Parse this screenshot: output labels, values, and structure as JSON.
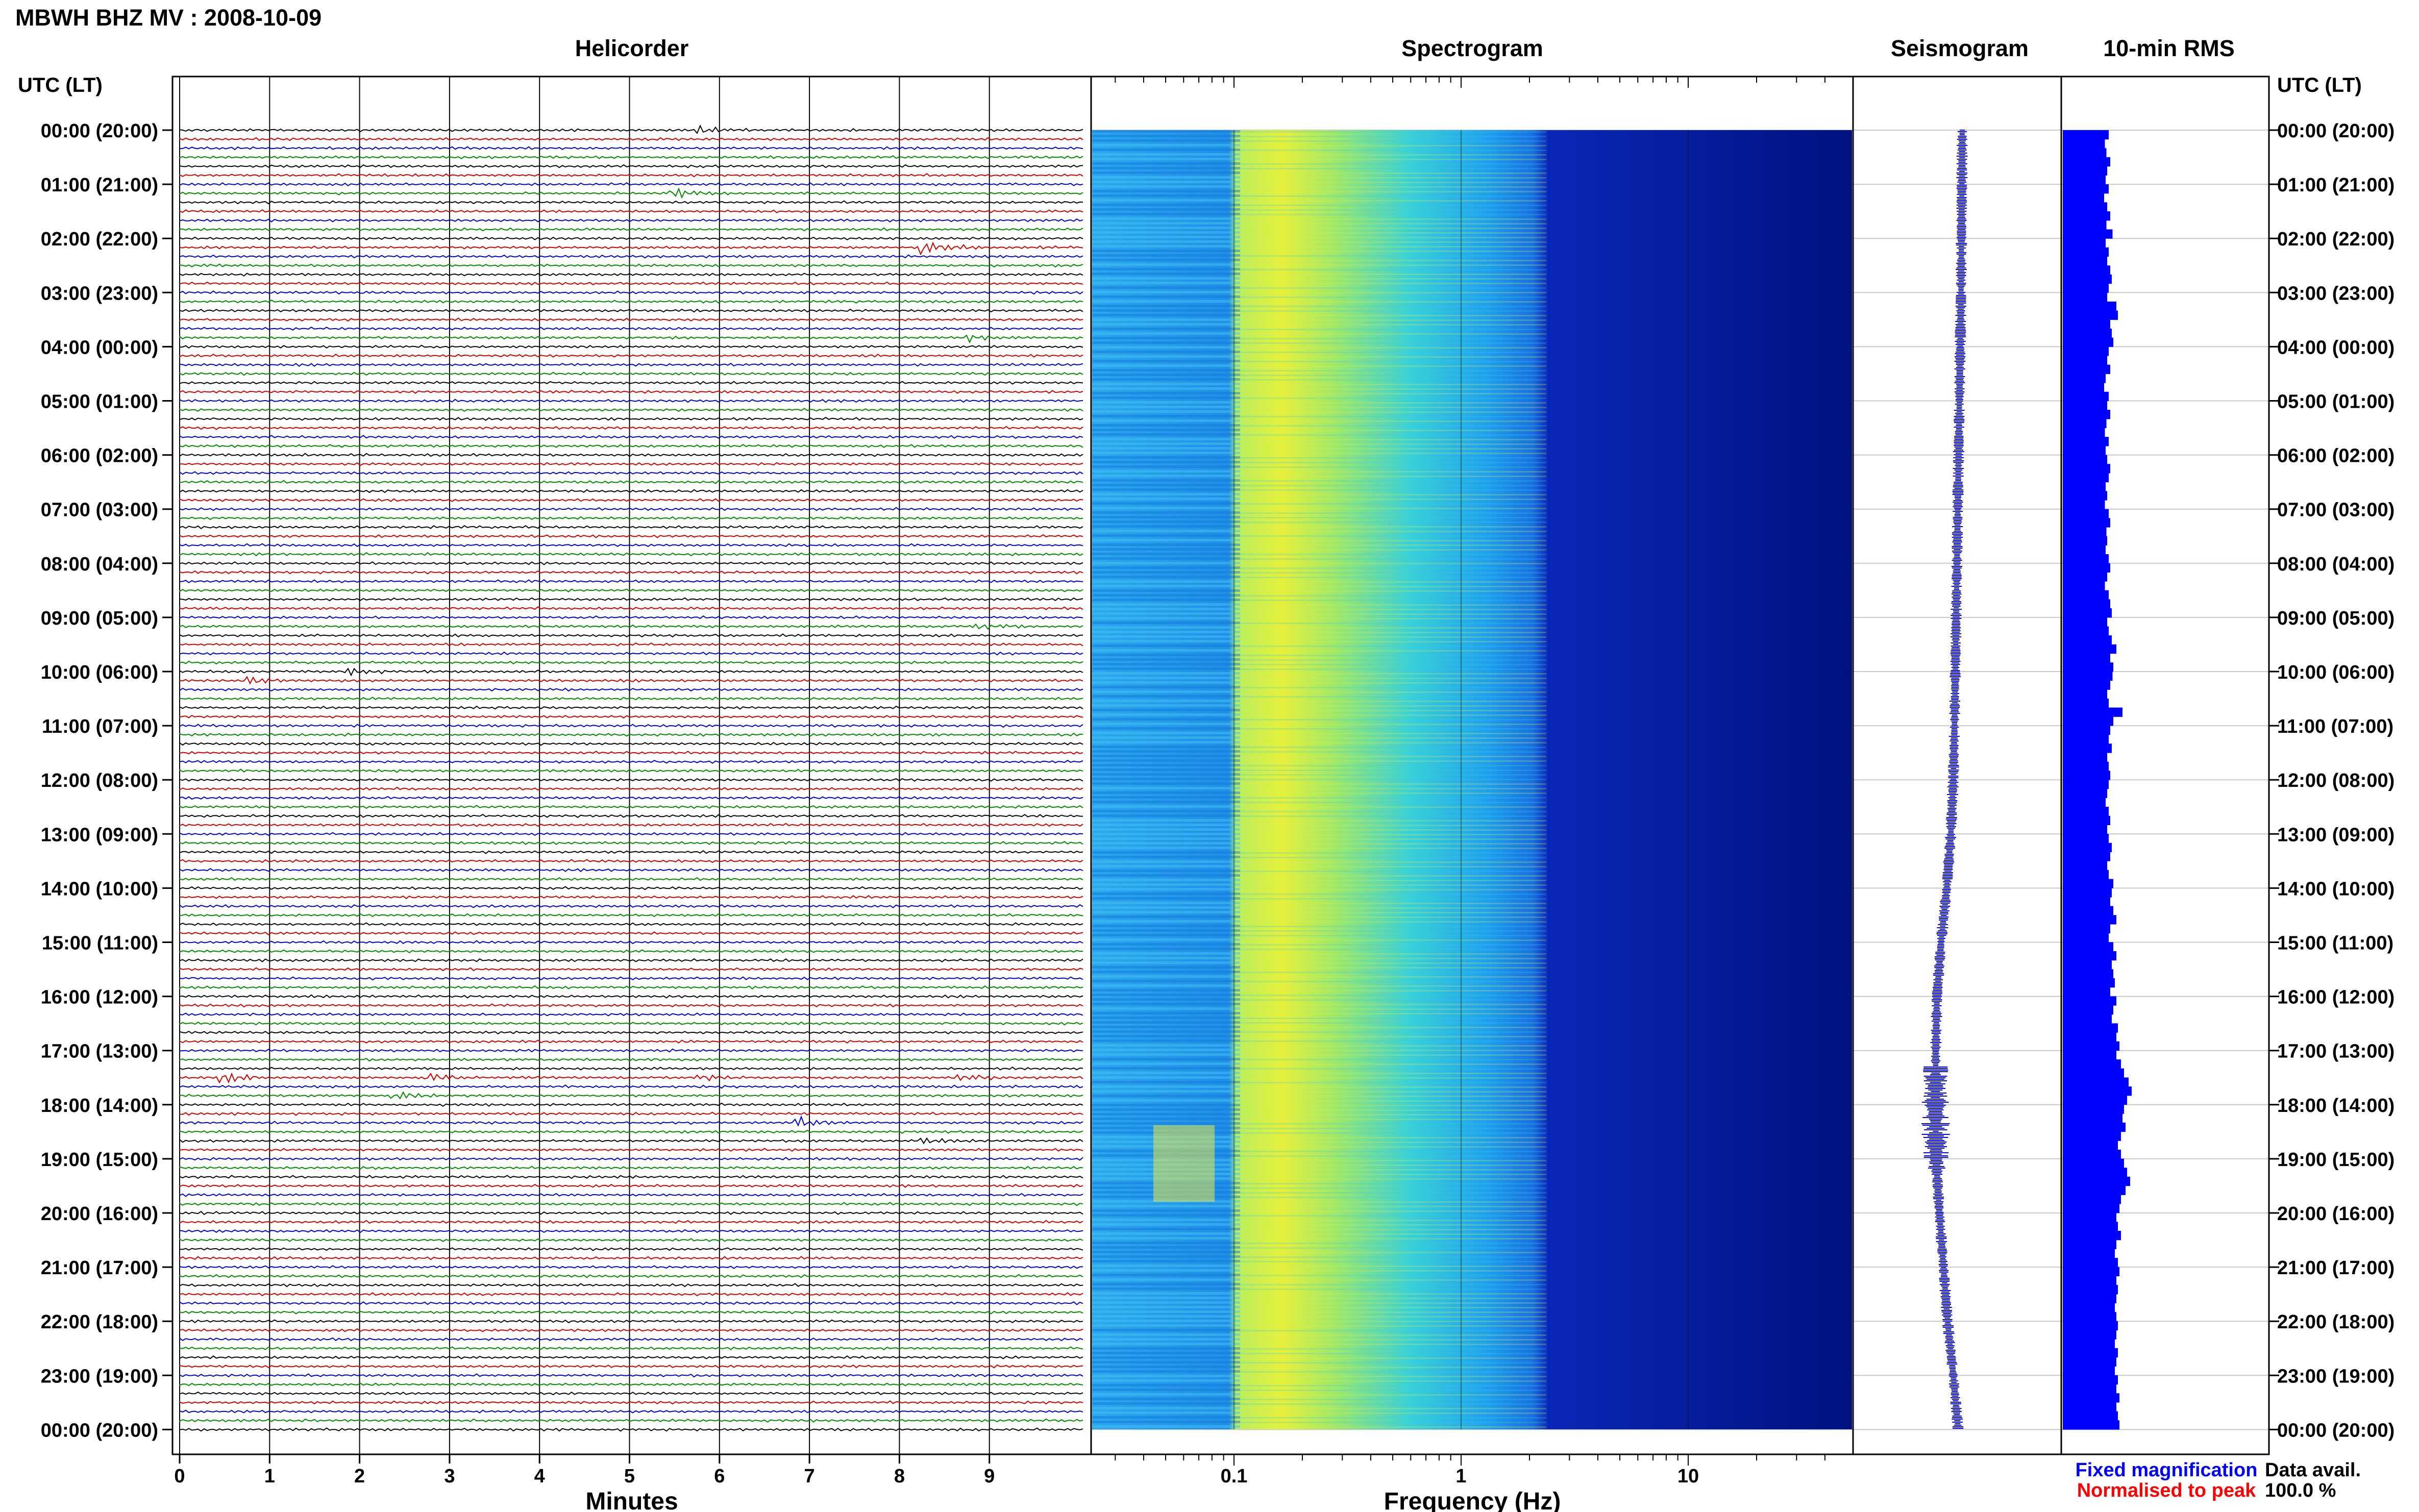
{
  "title": "MBWH BHZ MV : 2008-10-09",
  "panels": {
    "helicorder": "Helicorder",
    "spectrogram": "Spectrogram",
    "seismogram": "Seismogram",
    "rms": "10-min RMS"
  },
  "time_axis_label": "UTC (LT)",
  "x_labels": {
    "minutes": "Minutes",
    "frequency": "Frequency (Hz)"
  },
  "legend": {
    "fixed": "Fixed magnification",
    "normalised": "Normalised to peak",
    "fixed_color": "#0000ff",
    "normalised_color": "#ff0000"
  },
  "availability": {
    "label": "Data avail.",
    "value": "100.0 %"
  },
  "trace_colors": [
    "#000000",
    "#cc0000",
    "#0000cc",
    "#008800"
  ],
  "chart_data": {
    "type": "helicorder",
    "time_ticks": [
      "00:00 (20:00)",
      "01:00 (21:00)",
      "02:00 (22:00)",
      "03:00 (23:00)",
      "04:00 (00:00)",
      "05:00 (01:00)",
      "06:00 (02:00)",
      "07:00 (03:00)",
      "08:00 (04:00)",
      "09:00 (05:00)",
      "10:00 (06:00)",
      "11:00 (07:00)",
      "12:00 (08:00)",
      "13:00 (09:00)",
      "14:00 (10:00)",
      "15:00 (11:00)",
      "16:00 (12:00)",
      "17:00 (13:00)",
      "18:00 (14:00)",
      "19:00 (15:00)",
      "20:00 (16:00)",
      "21:00 (17:00)",
      "22:00 (18:00)",
      "23:00 (19:00)",
      "00:00 (20:00)"
    ],
    "minute_ticks": [
      "0",
      "1",
      "2",
      "3",
      "4",
      "5",
      "6",
      "7",
      "8",
      "9"
    ],
    "frequency_ticks": [
      "0.1",
      "1",
      "10"
    ],
    "helicorder_lines_per_hour": 6,
    "helicorder_events": [
      {
        "hour": 0.0,
        "minute": 5.8,
        "amp": 1.5
      },
      {
        "hour": 1.1,
        "minute": 5.5,
        "amp": 2.5
      },
      {
        "hour": 2.1,
        "minute": 8.3,
        "amp": 4.0
      },
      {
        "hour": 3.8,
        "minute": 8.8,
        "amp": 1.5
      },
      {
        "hour": 9.2,
        "minute": 8.9,
        "amp": 1.2
      },
      {
        "hour": 10.1,
        "minute": 0.8,
        "amp": 1.8
      },
      {
        "hour": 10.0,
        "minute": 1.9,
        "amp": 1.5
      },
      {
        "hour": 17.5,
        "minute": 0.5,
        "amp": 2.5
      },
      {
        "hour": 17.5,
        "minute": 2.8,
        "amp": 2.0
      },
      {
        "hour": 17.5,
        "minute": 5.8,
        "amp": 1.5
      },
      {
        "hour": 17.5,
        "minute": 8.7,
        "amp": 1.8
      },
      {
        "hour": 17.9,
        "minute": 2.4,
        "amp": 2.5
      },
      {
        "hour": 18.4,
        "minute": 6.9,
        "amp": 2.2
      },
      {
        "hour": 18.7,
        "minute": 8.3,
        "amp": 1.5
      }
    ],
    "seismogram_offset": [
      0.0,
      -0.1,
      -0.2,
      -0.3,
      -0.5,
      -0.7,
      -0.9,
      -1.1,
      -1.3,
      -1.5,
      -1.7,
      -1.9,
      -2.2,
      -2.8,
      -3.8,
      -5.2,
      -6.2,
      -6.5,
      -6.6,
      -6.4,
      -5.6,
      -4.6,
      -3.6,
      -2.2,
      -1.0
    ],
    "rms_values": [
      0.6,
      0.55,
      0.57,
      0.62,
      0.58,
      0.56,
      0.6,
      0.54,
      0.58,
      0.62,
      0.57,
      0.65,
      0.56,
      0.6,
      0.58,
      0.62,
      0.64,
      0.6,
      0.58,
      0.7,
      0.72,
      0.62,
      0.64,
      0.66,
      0.6,
      0.58,
      0.62,
      0.56,
      0.54,
      0.6,
      0.58,
      0.62,
      0.57,
      0.55,
      0.6,
      0.56,
      0.58,
      0.62,
      0.6,
      0.56,
      0.58,
      0.55,
      0.6,
      0.62,
      0.57,
      0.58,
      0.56,
      0.6,
      0.62,
      0.58,
      0.55,
      0.6,
      0.62,
      0.64,
      0.58,
      0.6,
      0.64,
      0.7,
      0.62,
      0.66,
      0.65,
      0.62,
      0.58,
      0.6,
      0.78,
      0.66,
      0.62,
      0.6,
      0.64,
      0.58,
      0.6,
      0.62,
      0.6,
      0.58,
      0.56,
      0.6,
      0.62,
      0.58,
      0.6,
      0.64,
      0.62,
      0.58,
      0.6,
      0.66,
      0.64,
      0.62,
      0.66,
      0.7,
      0.62,
      0.6,
      0.66,
      0.7,
      0.64,
      0.66,
      0.68,
      0.62,
      0.7,
      0.66,
      0.64,
      0.72,
      0.7,
      0.74,
      0.7,
      0.76,
      0.8,
      0.86,
      0.9,
      0.84,
      0.8,
      0.78,
      0.82,
      0.76,
      0.72,
      0.76,
      0.8,
      0.84,
      0.88,
      0.82,
      0.76,
      0.74,
      0.7,
      0.72,
      0.76,
      0.7,
      0.68,
      0.72,
      0.74,
      0.7,
      0.72,
      0.7,
      0.68,
      0.7,
      0.72,
      0.7,
      0.68,
      0.72,
      0.7,
      0.68,
      0.72,
      0.7,
      0.74,
      0.7,
      0.72,
      0.74
    ]
  }
}
